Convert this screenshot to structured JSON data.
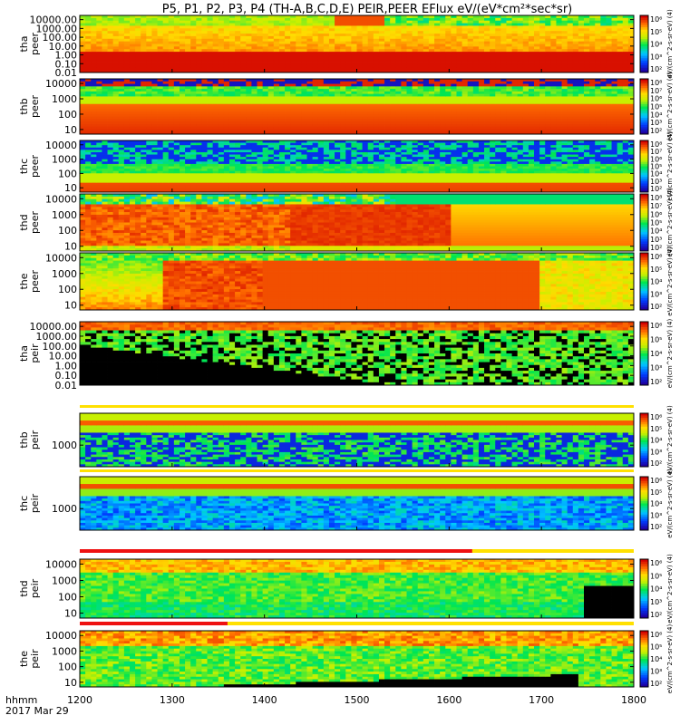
{
  "chart_data": {
    "type": "heatmap",
    "title": "P5, P1, P2, P3, P4 (TH-A,B,C,D,E) PEIR,PEER EFlux eV/(eV*cm²*sec*sr)",
    "x": {
      "ticks": [
        1200,
        1300,
        1400,
        1500,
        1600,
        1700,
        1800
      ],
      "tick_labels": [
        "1200",
        "1300",
        "1400",
        "1500",
        "1600",
        "1700",
        "1800"
      ],
      "range": [
        1200,
        1800
      ],
      "label": "hhmm",
      "date": "2017 Mar 29"
    },
    "colorbar": {
      "scale": "log",
      "range": [
        100,
        1000000
      ],
      "ticks": [
        "10²",
        "10³",
        "10⁴",
        "10⁵",
        "10⁶"
      ]
    },
    "panels": [
      {
        "id": "tha_peer",
        "label": [
          "tha",
          "peer"
        ],
        "yscale": "log",
        "ylim": [
          0.01,
          30000
        ],
        "ticks": [
          0.01,
          0.1,
          1,
          10,
          100,
          1000,
          10000
        ],
        "tick_labels": [
          "0.01",
          "0.10",
          "1.00",
          "10.00",
          "100.00",
          "1000.00",
          "10000.00"
        ],
        "cb_label": "eV/(cm^2-s-sr-eV) (4)",
        "cbticks": [
          "10²",
          "10³",
          "10⁴",
          "10⁵",
          "10⁶"
        ]
      },
      {
        "id": "thb_peer",
        "label": [
          "thb",
          "peer"
        ],
        "yscale": "log",
        "ylim": [
          5,
          20000
        ],
        "ticks": [
          10,
          100,
          1000,
          10000
        ],
        "tick_labels": [
          "10",
          "100",
          "1000",
          "10000"
        ],
        "cb_label": "eV/(cm^2-s-sr-eV) (4)",
        "cbticks": [
          "10²",
          "10³",
          "10⁴",
          "10⁵",
          "10⁶",
          "10⁷",
          "10⁸"
        ]
      },
      {
        "id": "thc_peer",
        "label": [
          "thc",
          "peer"
        ],
        "yscale": "log",
        "ylim": [
          5,
          20000
        ],
        "ticks": [
          10,
          100,
          1000,
          10000
        ],
        "tick_labels": [
          "10",
          "100",
          "1000",
          "10000"
        ],
        "cb_label": "eV/(cm^2-s-sr-eV) (4)",
        "cbticks": [
          "10²",
          "10³",
          "10⁴",
          "10⁵",
          "10⁶",
          "10⁷",
          "10⁸"
        ]
      },
      {
        "id": "thd_peer",
        "label": [
          "thd",
          "peer"
        ],
        "yscale": "log",
        "ylim": [
          5,
          20000
        ],
        "ticks": [
          10,
          100,
          1000,
          10000
        ],
        "tick_labels": [
          "10",
          "100",
          "1000",
          "10000"
        ],
        "cb_label": "eV/(cm^2-s-sr-eV) (4)",
        "cbticks": [
          "10²",
          "10³",
          "10⁴",
          "10⁵",
          "10⁶",
          "10⁷",
          "10⁸"
        ]
      },
      {
        "id": "the_peer",
        "label": [
          "the",
          "peer"
        ],
        "yscale": "log",
        "ylim": [
          5,
          20000
        ],
        "ticks": [
          10,
          100,
          1000,
          10000
        ],
        "tick_labels": [
          "10",
          "100",
          "1000",
          "10000"
        ],
        "cb_label": "eV/(cm^2-s-sr-eV) (4)",
        "cbticks": [
          "10²",
          "10³",
          "10⁴",
          "10⁵",
          "10⁶"
        ]
      },
      {
        "id": "tha_peir",
        "label": [
          "tha",
          "peir"
        ],
        "yscale": "log",
        "ylim": [
          0.01,
          30000
        ],
        "ticks": [
          0.01,
          0.1,
          1,
          10,
          100,
          1000,
          10000
        ],
        "tick_labels": [
          "0.01",
          "0.10",
          "1.00",
          "10.00",
          "100.00",
          "1000.00",
          "10000.00"
        ],
        "cb_label": "eV/(cm^2-s-sr-eV) (4)",
        "cbticks": [
          "10²",
          "10³",
          "10⁴",
          "10⁵",
          "10⁶"
        ]
      },
      {
        "id": "thb_peir",
        "label": [
          "thb",
          "peir"
        ],
        "yscale": "log",
        "ylim": [
          100,
          30000
        ],
        "ticks": [
          1000
        ],
        "tick_labels": [
          "1000"
        ],
        "cb_label": "eV/(cm^2-s-sr-eV) (4)",
        "cbticks": [
          "10²",
          "10³",
          "10⁴",
          "10⁵",
          "10⁶"
        ]
      },
      {
        "id": "thc_peir",
        "label": [
          "thc",
          "peir"
        ],
        "yscale": "log",
        "ylim": [
          100,
          30000
        ],
        "ticks": [
          1000
        ],
        "tick_labels": [
          "1000"
        ],
        "cb_label": "eV/(cm^2-s-sr-eV) (4)",
        "cbticks": [
          "10²",
          "10³",
          "10⁴",
          "10⁵",
          "10⁶"
        ]
      },
      {
        "id": "thd_peir",
        "label": [
          "thd",
          "peir"
        ],
        "yscale": "log",
        "ylim": [
          5,
          20000
        ],
        "ticks": [
          10,
          100,
          1000,
          10000
        ],
        "tick_labels": [
          "10",
          "100",
          "1000",
          "10000"
        ],
        "cb_label": "eV/(cm^2-s-sr-eV) (4)",
        "cbticks": [
          "10²",
          "10³",
          "10⁴",
          "10⁵",
          "10⁶"
        ]
      },
      {
        "id": "the_peir",
        "label": [
          "the",
          "peir"
        ],
        "yscale": "log",
        "ylim": [
          5,
          20000
        ],
        "ticks": [
          10,
          100,
          1000,
          10000
        ],
        "tick_labels": [
          "10",
          "100",
          "1000",
          "10000"
        ],
        "cb_label": "eV/(cm^2-s-sr-eV) (4)",
        "cbticks": [
          "10²",
          "10³",
          "10⁴",
          "10⁵",
          "10⁶"
        ]
      }
    ]
  }
}
